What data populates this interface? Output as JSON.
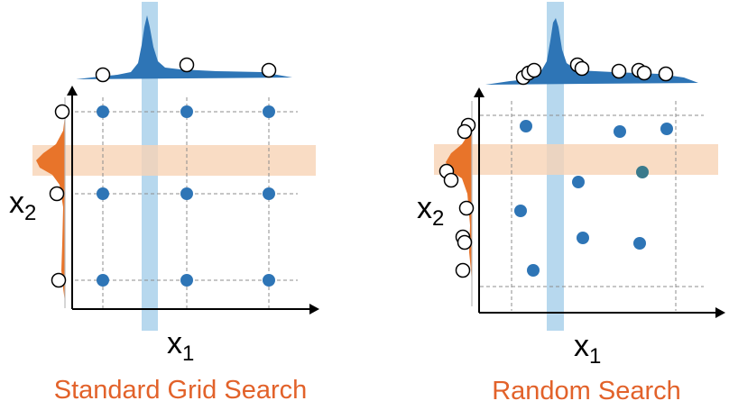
{
  "colors": {
    "axis": "#000000",
    "grid": "#8c8c8c",
    "dot": "#2e75b6",
    "dot_dark": "#3a7a8c",
    "x_density": "#2e75b6",
    "y_density": "#e8742a",
    "v_band": "#9fcbe8",
    "h_band": "#f8d3b5",
    "caption": "#e2622a"
  },
  "panels": [
    {
      "caption": "Standard Grid Search",
      "axes": {
        "x_main": "x",
        "x_sub": "1",
        "y_main": "x",
        "y_sub": "2"
      }
    },
    {
      "caption": "Random Search",
      "axes": {
        "x_main": "x",
        "x_sub": "1",
        "y_main": "x",
        "y_sub": "2"
      }
    }
  ]
}
